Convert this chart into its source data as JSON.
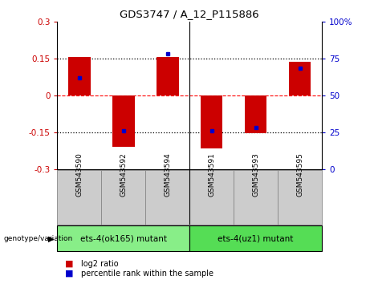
{
  "title": "GDS3747 / A_12_P115886",
  "samples": [
    "GSM543590",
    "GSM543592",
    "GSM543594",
    "GSM543591",
    "GSM543593",
    "GSM543595"
  ],
  "log2_ratio": [
    0.155,
    -0.21,
    0.155,
    -0.215,
    -0.155,
    0.135
  ],
  "percentile_rank": [
    62,
    26,
    78,
    26,
    28,
    68
  ],
  "ylim_left": [
    -0.3,
    0.3
  ],
  "ylim_right": [
    0,
    100
  ],
  "yticks_left": [
    -0.3,
    -0.15,
    0,
    0.15,
    0.3
  ],
  "yticks_right": [
    0,
    25,
    50,
    75,
    100
  ],
  "ytick_labels_left": [
    "-0.3",
    "-0.15",
    "0",
    "0.15",
    "0.3"
  ],
  "ytick_labels_right": [
    "0",
    "25",
    "50",
    "75",
    "100%"
  ],
  "bar_color": "#cc0000",
  "dot_color": "#0000cc",
  "groups": [
    {
      "label": "ets-4(ok165) mutant",
      "indices": [
        0,
        1,
        2
      ],
      "color": "#88ee88"
    },
    {
      "label": "ets-4(uz1) mutant",
      "indices": [
        3,
        4,
        5
      ],
      "color": "#55dd55"
    }
  ],
  "legend_bar_label": "log2 ratio",
  "legend_dot_label": "percentile rank within the sample",
  "genotype_label": "genotype/variation",
  "tick_label_color_left": "#cc0000",
  "tick_label_color_right": "#0000cc",
  "bar_width": 0.5,
  "sample_box_color": "#cccccc",
  "figsize": [
    4.61,
    3.54
  ],
  "dpi": 100
}
